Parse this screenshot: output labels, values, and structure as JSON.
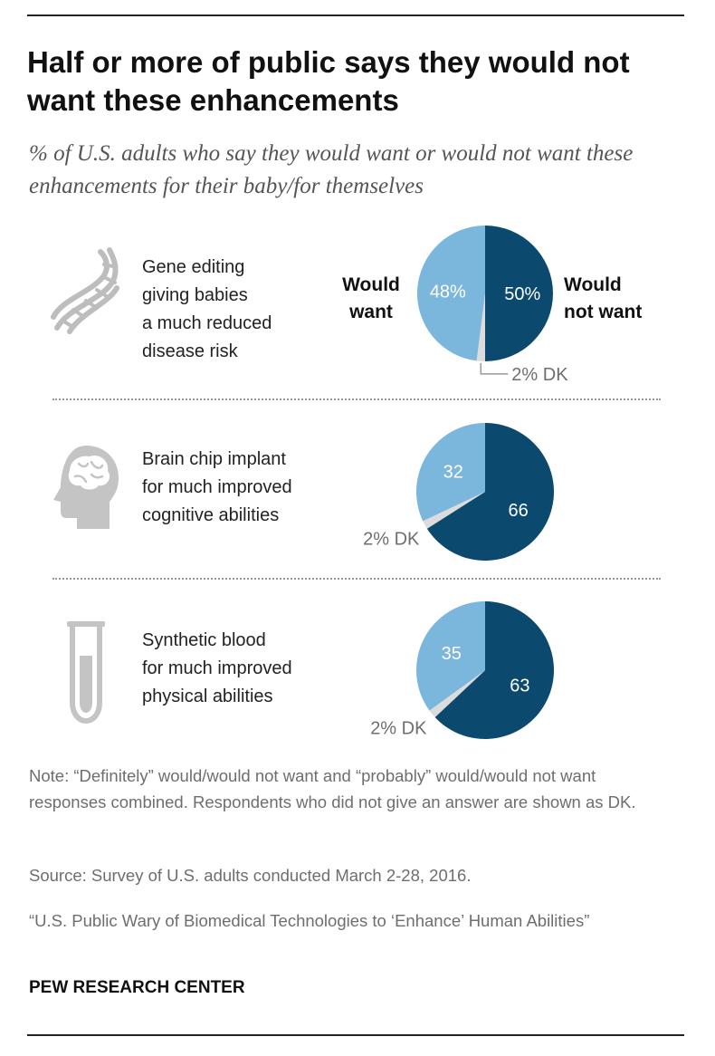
{
  "header": {
    "title": "Half or more of public says they would not want these enhancements",
    "subtitle": "% of U.S. adults who say they would want or would not want these enhancements for their baby/for themselves"
  },
  "legend": {
    "would_want_line1": "Would",
    "would_want_line2": "want",
    "would_not_want_line1": "Would",
    "would_not_want_line2": "not want"
  },
  "chart_data": {
    "type": "pie",
    "colors": {
      "would_want": "#7bb6dd",
      "would_not_want": "#0b4a6e",
      "dk": "#dcdcdc"
    },
    "items": [
      {
        "label": "Gene editing giving babies a much reduced disease risk",
        "label_lines": [
          "Gene editing",
          "giving babies",
          "a much reduced",
          "disease risk"
        ],
        "icon": "dna-icon",
        "would_not_want": 50,
        "would_want": 48,
        "dk": 2,
        "would_not_want_label": "50%",
        "would_want_label": "48%",
        "dk_label": "2% DK"
      },
      {
        "label": "Brain chip implant for much improved cognitive abilities",
        "label_lines": [
          "Brain chip implant",
          "for much improved",
          "cognitive abilities"
        ],
        "icon": "brain-head-icon",
        "would_not_want": 66,
        "would_want": 32,
        "dk": 2,
        "would_not_want_label": "66",
        "would_want_label": "32",
        "dk_label": "2% DK"
      },
      {
        "label": "Synthetic blood for much improved physical abilities",
        "label_lines": [
          "Synthetic blood",
          "for much improved",
          "physical abilities"
        ],
        "icon": "test-tube-icon",
        "would_not_want": 63,
        "would_want": 35,
        "dk": 2,
        "would_not_want_label": "63",
        "would_want_label": "35",
        "dk_label": "2% DK"
      }
    ]
  },
  "footer": {
    "note": "Note: “Definitely” would/would not want and “probably” would/would not want responses combined. Respondents who did not give an answer are shown as DK.",
    "source": "Source: Survey of U.S. adults conducted March 2-28, 2016.",
    "report": "“U.S. Public Wary of Biomedical Technologies to ‘Enhance’ Human Abilities”",
    "brand": "PEW RESEARCH CENTER"
  }
}
